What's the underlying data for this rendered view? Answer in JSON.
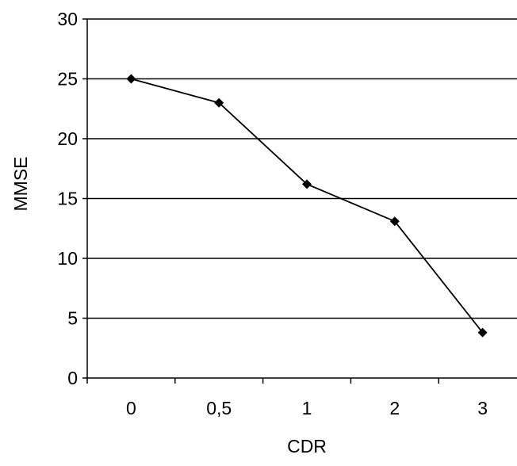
{
  "chart_data": {
    "type": "line",
    "categories": [
      "0",
      "0,5",
      "1",
      "2",
      "3"
    ],
    "series": [
      {
        "values": [
          25,
          23,
          16.2,
          13.1,
          3.8
        ]
      }
    ],
    "xlabel": "CDR",
    "ylabel": "MMSE",
    "ylim": [
      0,
      30
    ],
    "yticks": [
      0,
      5,
      10,
      15,
      20,
      25,
      30
    ],
    "grid": "horizontal",
    "marker": "diamond",
    "colors": {
      "line": "#000000",
      "grid": "#000000",
      "background": "#ffffff"
    }
  }
}
